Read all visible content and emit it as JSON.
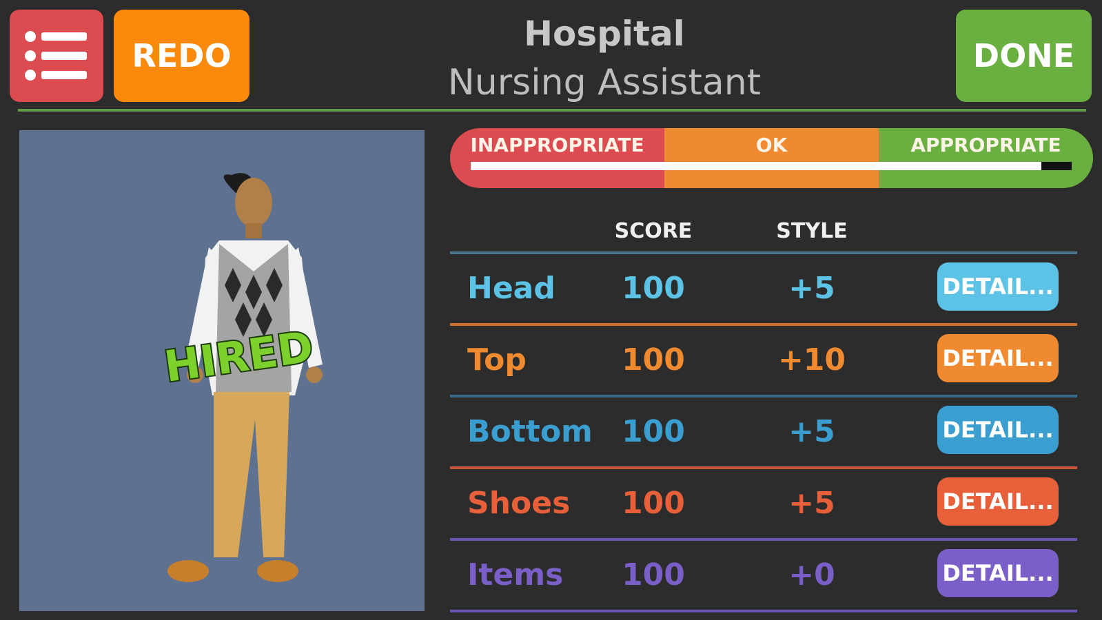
{
  "header": {
    "title": "Hospital",
    "subtitle": "Nursing Assistant",
    "redo_label": "REDO",
    "done_label": "DONE",
    "menu_icon": "list-icon"
  },
  "colors": {
    "background": "#2c2c2c",
    "menu": "#dc4b50",
    "redo": "#fb8a0c",
    "done": "#6ab041",
    "inappropriate": "#dc4b50",
    "ok": "#f08a30",
    "appropriate": "#6ab041"
  },
  "meter": {
    "labels": [
      "INAPPROPRIATE",
      "OK",
      "APPROPRIATE"
    ],
    "level_percent": 95
  },
  "character": {
    "badge": "HIRED"
  },
  "table": {
    "headers": {
      "score": "SCORE",
      "style": "STYLE"
    },
    "rows": [
      {
        "label": "Head",
        "score": "100",
        "style": "+5",
        "button": "DETAIL...",
        "color": "#5cc3e6"
      },
      {
        "label": "Top",
        "score": "100",
        "style": "+10",
        "button": "DETAIL...",
        "color": "#f08a30"
      },
      {
        "label": "Bottom",
        "score": "100",
        "style": "+5",
        "button": "DETAIL...",
        "color": "#3a9fd0"
      },
      {
        "label": "Shoes",
        "score": "100",
        "style": "+5",
        "button": "DETAIL...",
        "color": "#e8603a"
      },
      {
        "label": "Items",
        "score": "100",
        "style": "+0",
        "button": "DETAIL...",
        "color": "#7a5fc8"
      }
    ]
  }
}
